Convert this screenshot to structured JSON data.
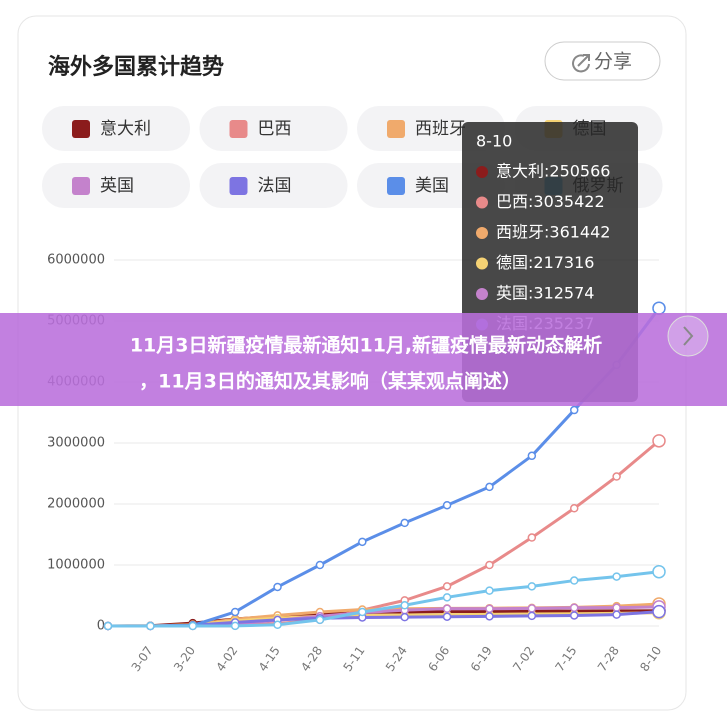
{
  "chart_data": {
    "type": "line",
    "title": "海外多国累计趋势",
    "categories": [
      null,
      "3-07",
      "3-20",
      "4-02",
      "4-15",
      "4-28",
      "5-11",
      "5-24",
      "6-06",
      "6-19",
      "7-02",
      "7-15",
      "7-28",
      "8-10"
    ],
    "series": [
      {
        "name": "意大利",
        "color": "#8b1c1c",
        "values": [
          0,
          5000,
          47000,
          115000,
          162000,
          200000,
          220000,
          230000,
          235000,
          238000,
          241000,
          243000,
          247000,
          250566
        ]
      },
      {
        "name": "巴西",
        "color": "#e88a8a",
        "values": [
          0,
          0,
          0,
          5000,
          40000,
          100000,
          260000,
          420000,
          650000,
          1000000,
          1450000,
          1930000,
          2450000,
          3035422
        ]
      },
      {
        "name": "西班牙",
        "color": "#f0aa6c",
        "values": [
          0,
          400,
          20000,
          110000,
          175000,
          230000,
          270000,
          282000,
          288000,
          292000,
          297000,
          305000,
          325000,
          361442
        ]
      },
      {
        "name": "德国",
        "color": "#f5d274",
        "values": [
          0,
          1000,
          18000,
          85000,
          130000,
          160000,
          172000,
          180000,
          184000,
          190000,
          196000,
          200000,
          207000,
          217316
        ]
      },
      {
        "name": "英国",
        "color": "#c482cc",
        "values": [
          0,
          200,
          4000,
          34000,
          94000,
          160000,
          220000,
          260000,
          284000,
          283000,
          288000,
          300000,
          301000,
          312574
        ]
      },
      {
        "name": "法国",
        "color": "#7d74e2",
        "values": [
          0,
          700,
          12000,
          60000,
          100000,
          128000,
          140000,
          145000,
          152000,
          158000,
          166000,
          173000,
          186000,
          235237
        ]
      },
      {
        "name": "美国",
        "color": "#5b8ee8",
        "values": [
          0,
          0,
          10000,
          230000,
          640000,
          1000000,
          1380000,
          1690000,
          1980000,
          2280000,
          2790000,
          3540000,
          4280000,
          5210000
        ]
      },
      {
        "name": "俄罗斯",
        "color": "#74c4ec",
        "values": [
          0,
          0,
          0,
          2000,
          20000,
          100000,
          230000,
          340000,
          470000,
          580000,
          650000,
          745000,
          810000,
          890000
        ]
      }
    ],
    "ylim": [
      0,
      6000000
    ],
    "yticks": [
      0,
      1000000,
      2000000,
      3000000,
      4000000,
      5000000,
      6000000
    ],
    "grid": true
  },
  "share_button": "分享",
  "tooltip": {
    "title": "8-10",
    "items": [
      "意大利:250566",
      "巴西:3035422",
      "西班牙:361442",
      "德国:217316",
      "英国:312574",
      "法国:235237"
    ]
  },
  "banner": {
    "line1": "11月3日新疆疫情最新通知11月,新疆疫情最新动态解析",
    "line2": "，11月3日的通知及其影响（某某观点阐述）"
  }
}
